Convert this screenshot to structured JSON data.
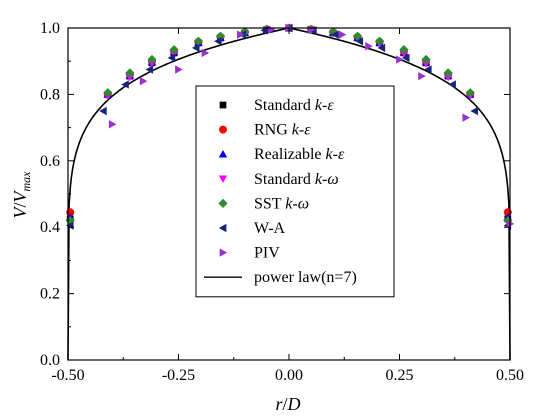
{
  "chart_data": {
    "type": "scatter",
    "xlabel": "r/D",
    "ylabel": "V/V_max",
    "xlim": [
      -0.5,
      0.5
    ],
    "ylim": [
      0.0,
      1.0
    ],
    "xticks": [
      "-0.50",
      "-0.25",
      "0.00",
      "0.25",
      "0.50"
    ],
    "yticks": [
      "0.0",
      "0.2",
      "0.4",
      "0.6",
      "0.8",
      "1.0"
    ],
    "grid": false,
    "legend_position": "center",
    "series": [
      {
        "name": "Standard k-ε",
        "marker": "square",
        "color": "#000000",
        "x": [
          -0.495,
          -0.41,
          -0.36,
          -0.31,
          -0.26,
          -0.205,
          -0.155,
          -0.1,
          -0.05,
          0.0,
          0.05,
          0.1,
          0.155,
          0.205,
          0.26,
          0.31,
          0.36,
          0.41,
          0.495
        ],
        "y": [
          0.425,
          0.8,
          0.855,
          0.895,
          0.925,
          0.955,
          0.97,
          0.985,
          0.995,
          1.0,
          0.995,
          0.985,
          0.97,
          0.955,
          0.925,
          0.895,
          0.855,
          0.8,
          0.425
        ]
      },
      {
        "name": "RNG k-ε",
        "marker": "circle",
        "color": "#ff0000",
        "x": [
          -0.495,
          -0.41,
          -0.36,
          -0.31,
          -0.26,
          -0.205,
          -0.155,
          -0.1,
          -0.05,
          0.0,
          0.05,
          0.1,
          0.155,
          0.205,
          0.26,
          0.31,
          0.36,
          0.41,
          0.495
        ],
        "y": [
          0.445,
          0.8,
          0.86,
          0.9,
          0.93,
          0.958,
          0.973,
          0.987,
          0.996,
          1.0,
          0.996,
          0.987,
          0.973,
          0.958,
          0.93,
          0.9,
          0.86,
          0.8,
          0.445
        ]
      },
      {
        "name": "Realizable k-ε",
        "marker": "triangle-up",
        "color": "#0000ff",
        "x": [
          -0.495,
          -0.41,
          -0.36,
          -0.31,
          -0.26,
          -0.205,
          -0.155,
          -0.1,
          -0.05,
          0.0,
          0.05,
          0.1,
          0.155,
          0.205,
          0.26,
          0.31,
          0.36,
          0.41,
          0.495
        ],
        "y": [
          0.43,
          0.8,
          0.858,
          0.898,
          0.928,
          0.956,
          0.971,
          0.986,
          0.995,
          1.0,
          0.995,
          0.986,
          0.971,
          0.956,
          0.928,
          0.898,
          0.858,
          0.8,
          0.43
        ]
      },
      {
        "name": "Standard k-ω",
        "marker": "triangle-down",
        "color": "#ff00ff",
        "x": [
          -0.495,
          -0.41,
          -0.36,
          -0.31,
          -0.26,
          -0.205,
          -0.155,
          -0.1,
          -0.05,
          0.0,
          0.05,
          0.1,
          0.155,
          0.205,
          0.26,
          0.31,
          0.36,
          0.41,
          0.495
        ],
        "y": [
          0.415,
          0.795,
          0.852,
          0.893,
          0.923,
          0.953,
          0.969,
          0.984,
          0.994,
          1.0,
          0.994,
          0.984,
          0.969,
          0.953,
          0.923,
          0.893,
          0.852,
          0.795,
          0.415
        ]
      },
      {
        "name": "SST k-ω",
        "marker": "diamond",
        "color": "#2e8b2e",
        "x": [
          -0.495,
          -0.41,
          -0.36,
          -0.31,
          -0.26,
          -0.205,
          -0.155,
          -0.1,
          -0.05,
          0.0,
          0.05,
          0.1,
          0.155,
          0.205,
          0.26,
          0.31,
          0.36,
          0.41,
          0.495
        ],
        "y": [
          0.42,
          0.805,
          0.865,
          0.905,
          0.935,
          0.96,
          0.975,
          0.988,
          0.996,
          1.0,
          0.996,
          0.988,
          0.975,
          0.96,
          0.935,
          0.905,
          0.865,
          0.805,
          0.42
        ]
      },
      {
        "name": "W-A",
        "marker": "triangle-left",
        "color": "#1a237e",
        "x": [
          -0.495,
          -0.42,
          -0.37,
          -0.315,
          -0.265,
          -0.21,
          -0.16,
          -0.105,
          -0.055,
          0.0,
          0.055,
          0.105,
          0.16,
          0.21,
          0.265,
          0.315,
          0.37,
          0.42,
          0.495
        ],
        "y": [
          0.405,
          0.75,
          0.83,
          0.875,
          0.91,
          0.94,
          0.96,
          0.98,
          0.993,
          1.0,
          0.993,
          0.98,
          0.96,
          0.94,
          0.91,
          0.875,
          0.83,
          0.75,
          0.405
        ]
      },
      {
        "name": "PIV",
        "marker": "triangle-right",
        "color": "#9932cc",
        "x": [
          -0.4,
          -0.33,
          -0.25,
          -0.19,
          -0.11,
          -0.04,
          0.0,
          0.05,
          0.12,
          0.18,
          0.25,
          0.3,
          0.4,
          0.5
        ],
        "y": [
          0.71,
          0.84,
          0.875,
          0.925,
          0.98,
          0.995,
          1.0,
          0.995,
          0.98,
          0.945,
          0.905,
          0.855,
          0.73,
          0.41
        ]
      },
      {
        "name": "power law(n=7)",
        "marker": "line",
        "color": "#000000",
        "exponent_n": 7
      }
    ]
  }
}
